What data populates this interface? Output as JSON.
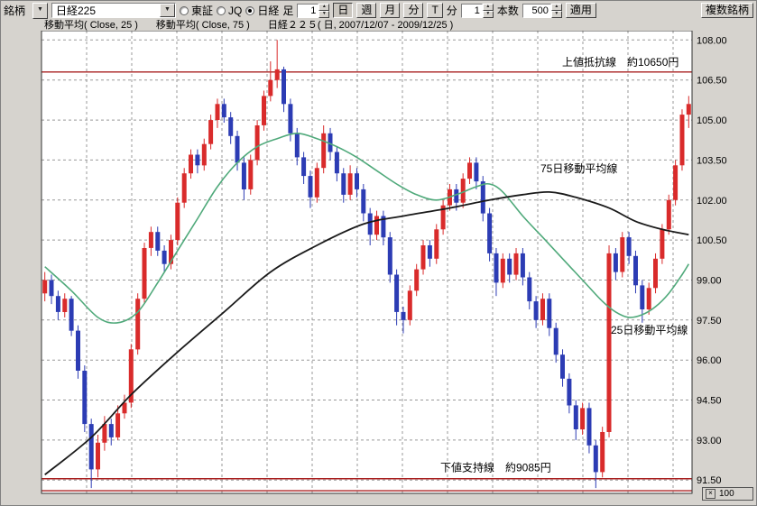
{
  "toolbar": {
    "symbol_label": "銘柄",
    "dropdown_arrow": "▼",
    "symbol_value": "日経225",
    "market_radios": [
      {
        "label": "東証",
        "selected": false
      },
      {
        "label": "JQ",
        "selected": false
      },
      {
        "label": "日経",
        "selected": true
      }
    ],
    "bar_label": "足",
    "bar_interval": "1",
    "unit_day": "日",
    "unit_week": "週",
    "unit_month": "月",
    "unit_minute": "分",
    "tick_button": "T",
    "minute_label": "分",
    "minute_interval": "1",
    "count_label": "本数",
    "count_value": "500",
    "apply_label": "適用",
    "multi_symbol_label": "複数銘柄"
  },
  "axis": {
    "multiplier_symbol": "×",
    "multiplier_value": "100"
  },
  "chart_data": {
    "type": "candlestick",
    "title": "日経２２５( 日, 2007/12/07 - 2009/12/25 )",
    "period": "日",
    "date_range": "2007/12/07 - 2009/12/25",
    "y_multiplier": 100,
    "y_labels": [
      "108.00",
      "106.50",
      "105.00",
      "103.50",
      "102.00",
      "100.50",
      "99.00",
      "97.50",
      "96.00",
      "94.50",
      "93.00",
      "91.50"
    ],
    "ohlc": [
      [
        98.5,
        99.3,
        98.2,
        99.0
      ],
      [
        99.0,
        99.2,
        98.1,
        98.4
      ],
      [
        98.4,
        98.6,
        97.5,
        97.8
      ],
      [
        97.8,
        98.5,
        97.6,
        98.3
      ],
      [
        98.3,
        98.4,
        96.9,
        97.1
      ],
      [
        97.1,
        97.3,
        95.3,
        95.6
      ],
      [
        95.6,
        95.8,
        93.3,
        93.6
      ],
      [
        93.6,
        93.8,
        91.2,
        91.9
      ],
      [
        91.9,
        93.2,
        91.6,
        92.9
      ],
      [
        92.9,
        93.9,
        92.6,
        93.6
      ],
      [
        93.6,
        93.8,
        92.8,
        93.1
      ],
      [
        93.1,
        94.3,
        93.0,
        94.0
      ],
      [
        94.0,
        94.7,
        93.8,
        94.4
      ],
      [
        94.4,
        96.6,
        94.2,
        96.4
      ],
      [
        96.4,
        98.5,
        96.2,
        98.3
      ],
      [
        98.3,
        100.4,
        98.1,
        100.2
      ],
      [
        100.2,
        101.0,
        99.9,
        100.8
      ],
      [
        100.8,
        101.0,
        99.9,
        100.1
      ],
      [
        100.1,
        100.3,
        99.3,
        99.6
      ],
      [
        99.6,
        100.7,
        99.4,
        100.5
      ],
      [
        100.5,
        102.1,
        100.3,
        101.9
      ],
      [
        101.9,
        103.2,
        101.7,
        103.0
      ],
      [
        103.0,
        103.9,
        102.8,
        103.7
      ],
      [
        103.7,
        103.9,
        103.0,
        103.3
      ],
      [
        103.3,
        104.3,
        103.1,
        104.1
      ],
      [
        104.1,
        105.2,
        103.9,
        105.0
      ],
      [
        105.0,
        105.8,
        104.7,
        105.6
      ],
      [
        105.6,
        105.8,
        104.9,
        105.1
      ],
      [
        105.1,
        105.3,
        104.1,
        104.4
      ],
      [
        104.4,
        104.6,
        103.1,
        103.4
      ],
      [
        103.4,
        103.6,
        102.0,
        102.4
      ],
      [
        102.4,
        103.7,
        102.2,
        103.5
      ],
      [
        103.5,
        105.0,
        103.3,
        104.8
      ],
      [
        104.8,
        106.1,
        104.6,
        105.9
      ],
      [
        105.9,
        107.2,
        105.7,
        106.5
      ],
      [
        106.5,
        108.0,
        106.2,
        106.9
      ],
      [
        106.9,
        107.0,
        105.3,
        105.6
      ],
      [
        105.6,
        105.8,
        104.2,
        104.5
      ],
      [
        104.5,
        104.7,
        103.3,
        103.6
      ],
      [
        103.6,
        103.8,
        102.6,
        102.9
      ],
      [
        102.9,
        103.1,
        101.7,
        102.1
      ],
      [
        102.1,
        103.4,
        101.9,
        103.2
      ],
      [
        103.2,
        104.8,
        103.0,
        104.5
      ],
      [
        104.5,
        104.7,
        103.5,
        103.8
      ],
      [
        103.8,
        104.0,
        102.7,
        103.0
      ],
      [
        103.0,
        103.2,
        101.9,
        102.2
      ],
      [
        102.2,
        103.3,
        102.0,
        103.0
      ],
      [
        103.0,
        103.2,
        102.1,
        102.4
      ],
      [
        102.4,
        102.6,
        101.2,
        101.5
      ],
      [
        101.5,
        101.7,
        100.3,
        100.7
      ],
      [
        100.7,
        101.6,
        100.5,
        101.4
      ],
      [
        101.4,
        101.6,
        100.3,
        100.6
      ],
      [
        100.6,
        100.8,
        98.9,
        99.2
      ],
      [
        99.2,
        99.4,
        97.3,
        97.8
      ],
      [
        97.8,
        98.0,
        97.0,
        97.5
      ],
      [
        97.5,
        98.8,
        97.3,
        98.6
      ],
      [
        98.6,
        99.6,
        98.4,
        99.4
      ],
      [
        99.4,
        100.5,
        99.2,
        100.3
      ],
      [
        100.3,
        100.5,
        99.5,
        99.8
      ],
      [
        99.8,
        101.1,
        99.6,
        100.9
      ],
      [
        100.9,
        102.0,
        100.7,
        101.8
      ],
      [
        101.8,
        102.6,
        101.6,
        102.4
      ],
      [
        102.4,
        102.6,
        101.6,
        101.9
      ],
      [
        101.9,
        103.0,
        101.7,
        102.8
      ],
      [
        102.8,
        103.6,
        102.6,
        103.4
      ],
      [
        103.4,
        103.6,
        102.4,
        102.7
      ],
      [
        102.7,
        102.9,
        101.2,
        101.5
      ],
      [
        101.5,
        101.7,
        99.7,
        100.0
      ],
      [
        100.0,
        100.2,
        98.4,
        98.9
      ],
      [
        98.9,
        100.0,
        98.7,
        99.8
      ],
      [
        99.8,
        100.0,
        98.9,
        99.2
      ],
      [
        99.2,
        100.2,
        99.0,
        100.0
      ],
      [
        100.0,
        100.2,
        98.8,
        99.1
      ],
      [
        99.1,
        99.3,
        97.9,
        98.2
      ],
      [
        98.2,
        98.4,
        97.2,
        97.5
      ],
      [
        97.5,
        98.5,
        97.3,
        98.3
      ],
      [
        98.3,
        98.5,
        96.9,
        97.2
      ],
      [
        97.2,
        97.4,
        95.9,
        96.2
      ],
      [
        96.2,
        96.4,
        95.0,
        95.3
      ],
      [
        95.3,
        95.5,
        94.0,
        94.3
      ],
      [
        94.3,
        94.5,
        93.0,
        93.4
      ],
      [
        93.4,
        94.4,
        93.2,
        94.2
      ],
      [
        94.2,
        94.4,
        92.5,
        92.8
      ],
      [
        92.8,
        93.0,
        91.2,
        91.8
      ],
      [
        91.8,
        93.5,
        91.6,
        93.3
      ],
      [
        93.3,
        100.3,
        93.1,
        100.0
      ],
      [
        100.0,
        100.2,
        99.0,
        99.3
      ],
      [
        99.3,
        100.8,
        99.1,
        100.6
      ],
      [
        100.6,
        100.8,
        99.6,
        99.9
      ],
      [
        99.9,
        100.1,
        98.5,
        98.8
      ],
      [
        98.8,
        99.0,
        97.4,
        97.9
      ],
      [
        97.9,
        98.9,
        97.7,
        98.7
      ],
      [
        98.7,
        100.0,
        98.5,
        99.8
      ],
      [
        99.8,
        101.1,
        99.6,
        100.9
      ],
      [
        100.9,
        102.2,
        100.7,
        102.0
      ],
      [
        102.0,
        103.5,
        101.8,
        103.3
      ],
      [
        103.3,
        105.4,
        103.1,
        105.2
      ],
      [
        105.2,
        105.9,
        104.7,
        105.6
      ]
    ],
    "series": [
      {
        "name": "移動平均( Close, 25 )",
        "color": "#4fa97a",
        "points": [
          [
            0,
            99.5
          ],
          [
            4,
            98.6
          ],
          [
            8,
            97.6
          ],
          [
            11,
            97.4
          ],
          [
            14,
            97.8
          ],
          [
            17,
            98.9
          ],
          [
            20,
            100.1
          ],
          [
            23,
            101.3
          ],
          [
            26,
            102.5
          ],
          [
            29,
            103.4
          ],
          [
            32,
            104.0
          ],
          [
            35,
            104.3
          ],
          [
            38,
            104.5
          ],
          [
            41,
            104.3
          ],
          [
            44,
            104.0
          ],
          [
            47,
            103.6
          ],
          [
            50,
            103.1
          ],
          [
            53,
            102.6
          ],
          [
            56,
            102.2
          ],
          [
            59,
            102.0
          ],
          [
            62,
            102.2
          ],
          [
            65,
            102.5
          ],
          [
            67,
            102.6
          ],
          [
            69,
            102.3
          ],
          [
            72,
            101.4
          ],
          [
            75,
            100.6
          ],
          [
            78,
            99.8
          ],
          [
            81,
            99.0
          ],
          [
            84,
            98.2
          ],
          [
            86,
            97.8
          ],
          [
            88,
            97.6
          ],
          [
            90,
            97.7
          ],
          [
            92,
            98.0
          ],
          [
            94,
            98.5
          ],
          [
            96,
            99.2
          ],
          [
            97,
            99.6
          ]
        ]
      },
      {
        "name": "移動平均( Close, 75 )",
        "color": "#1a1a1a",
        "points": [
          [
            0,
            91.7
          ],
          [
            7,
            93.1
          ],
          [
            13,
            94.7
          ],
          [
            20,
            96.3
          ],
          [
            27,
            97.8
          ],
          [
            34,
            99.3
          ],
          [
            41,
            100.3
          ],
          [
            48,
            101.1
          ],
          [
            54,
            101.4
          ],
          [
            61,
            101.7
          ],
          [
            67,
            102.0
          ],
          [
            72,
            102.2
          ],
          [
            76,
            102.3
          ],
          [
            80,
            102.1
          ],
          [
            85,
            101.7
          ],
          [
            89,
            101.2
          ],
          [
            93,
            100.9
          ],
          [
            97,
            100.7
          ]
        ]
      }
    ],
    "levels": {
      "resistance": {
        "price": 106.8,
        "label": "上値抵抗線　約10650円"
      },
      "support": {
        "prices": [
          91.55,
          91.1
        ],
        "label": "下値支持線　約9085円"
      }
    },
    "line_annotations": [
      {
        "text": "75日移動平均線",
        "x": 598,
        "y": 190
      },
      {
        "text": "25日移動平均線",
        "x": 676,
        "y": 369
      }
    ],
    "colors": {
      "up": "#d92b2b",
      "down": "#2c3cb4",
      "grid": "#999999",
      "level": "#aa2020",
      "border": "#333333"
    }
  }
}
